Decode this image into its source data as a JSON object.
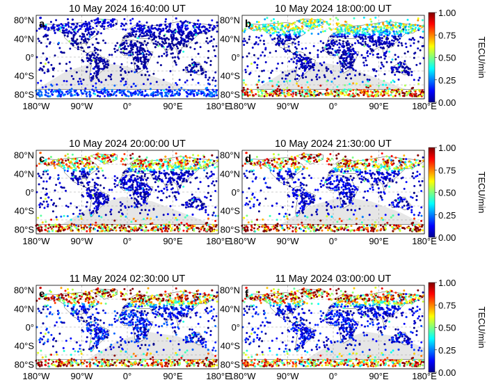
{
  "figure": {
    "colorbar": {
      "label": "TECU/min",
      "ticks": [
        "1.00",
        "0.75",
        "0.50",
        "0.25",
        "0.00"
      ],
      "range": [
        0,
        1
      ]
    },
    "x_ticks": [
      "180°W",
      "90°W",
      "0°",
      "90°E",
      "180°E"
    ],
    "y_ticks": [
      "80°N",
      "40°N",
      "0°",
      "40°S",
      "80°S"
    ]
  },
  "chart_data": [
    {
      "type": "heatmap",
      "panel": "a",
      "title": "10 May 2024 16:40:00 UT",
      "activity": {
        "north": 0.08,
        "south": 0.18,
        "equator": 0.03
      },
      "xlim": [
        -180,
        180
      ],
      "ylim": [
        -90,
        90
      ]
    },
    {
      "type": "heatmap",
      "panel": "b",
      "title": "10 May 2024 18:00:00 UT",
      "activity": {
        "north": 0.5,
        "south": 0.75,
        "equator": 0.05
      },
      "xlim": [
        -180,
        180
      ],
      "ylim": [
        -90,
        90
      ]
    },
    {
      "type": "heatmap",
      "panel": "c",
      "title": "10 May 2024 20:00:00 UT",
      "activity": {
        "north": 0.72,
        "south": 0.8,
        "equator": 0.06
      },
      "xlim": [
        -180,
        180
      ],
      "ylim": [
        -90,
        90
      ]
    },
    {
      "type": "heatmap",
      "panel": "d",
      "title": "10 May 2024 21:30:00 UT",
      "activity": {
        "north": 0.78,
        "south": 0.85,
        "equator": 0.08
      },
      "xlim": [
        -180,
        180
      ],
      "ylim": [
        -90,
        90
      ]
    },
    {
      "type": "heatmap",
      "panel": "e",
      "title": "11 May 2024 02:30:00 UT",
      "activity": {
        "north": 0.85,
        "south": 0.8,
        "equator": 0.12
      },
      "xlim": [
        -180,
        180
      ],
      "ylim": [
        -90,
        90
      ]
    },
    {
      "type": "heatmap",
      "panel": "f",
      "title": "11 May 2024 03:00:00 UT",
      "activity": {
        "north": 0.8,
        "south": 0.7,
        "equator": 0.1
      },
      "xlim": [
        -180,
        180
      ],
      "ylim": [
        -90,
        90
      ]
    }
  ]
}
